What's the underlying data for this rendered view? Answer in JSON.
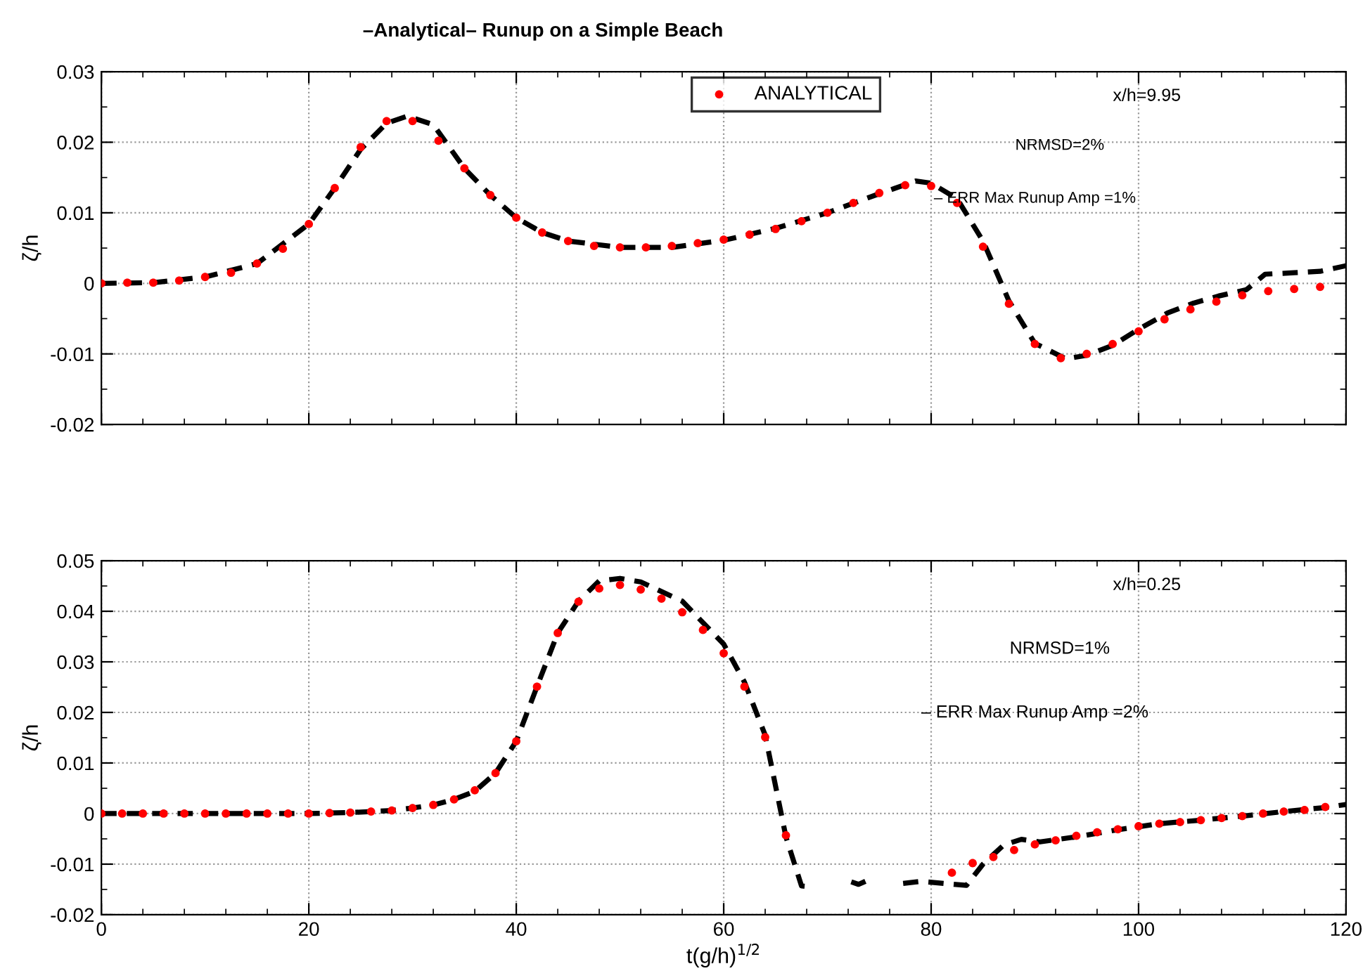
{
  "chart_data": [
    {
      "type": "line",
      "title": "–Analytical– Runup on a Simple Beach",
      "ylabel": "ζ/h",
      "xlim": [
        0,
        120
      ],
      "xticks": [
        0,
        20,
        40,
        60,
        80,
        100,
        120
      ],
      "ylim": [
        -0.02,
        0.03
      ],
      "yticks": [
        -0.02,
        -0.01,
        0,
        0.01,
        0.02,
        0.03
      ],
      "tick_labels": "y",
      "grid": true,
      "legend": "top",
      "annotations": [
        "x/h=9.95",
        "NRMSD=2%",
        "– ERR Max Runup Amp =1%"
      ],
      "series": [
        {
          "color": "#000000",
          "line_style": "dashed",
          "marker": "none",
          "x": [
            0,
            5,
            10,
            15,
            20,
            22.5,
            25,
            27.5,
            29.5,
            32,
            35,
            37.5,
            40,
            42.5,
            45,
            50,
            55,
            60,
            65,
            70,
            75,
            78.5,
            80,
            82.5,
            85,
            87.5,
            90,
            93,
            95,
            97.5,
            100,
            102.8,
            105.3,
            107.7,
            110.4,
            112.2,
            115,
            117.5,
            120
          ],
          "values": [
            0,
            0.0001,
            0.0009,
            0.0028,
            0.0084,
            0.0135,
            0.019,
            0.0227,
            0.0237,
            0.0225,
            0.0163,
            0.0125,
            0.0093,
            0.0072,
            0.006,
            0.0051,
            0.0051,
            0.0061,
            0.0078,
            0.01,
            0.0127,
            0.0145,
            0.0142,
            0.012,
            0.006,
            -0.0025,
            -0.0085,
            -0.0107,
            -0.0102,
            -0.0088,
            -0.0065,
            -0.0042,
            -0.0028,
            -0.0018,
            -0.0009,
            0.0013,
            0.0015,
            0.0017,
            0.0025
          ]
        },
        {
          "type": "scatter",
          "name": "ANALYTICAL",
          "color": "#ff0000",
          "marker": "circle",
          "x": [
            0,
            2.5,
            5,
            7.5,
            10,
            12.5,
            15,
            17.5,
            20,
            22.5,
            25,
            27.5,
            30,
            32.5,
            35,
            37.5,
            40,
            42.5,
            45,
            47.5,
            50,
            52.5,
            55,
            57.5,
            60,
            62.5,
            65,
            67.5,
            70,
            72.5,
            75,
            77.5,
            80,
            82.5,
            85,
            87.5,
            90,
            92.5,
            95,
            97.5,
            100,
            102.5,
            105,
            107.5,
            110,
            112.5,
            115,
            117.5
          ],
          "values": [
            0,
            0.0001,
            0.0001,
            0.0004,
            0.0009,
            0.0015,
            0.0028,
            0.0049,
            0.0084,
            0.0135,
            0.0193,
            0.023,
            0.023,
            0.0202,
            0.0163,
            0.0125,
            0.0093,
            0.0072,
            0.006,
            0.0053,
            0.0051,
            0.0051,
            0.0053,
            0.0057,
            0.0062,
            0.0069,
            0.0077,
            0.0088,
            0.01,
            0.0114,
            0.0128,
            0.0139,
            0.0138,
            0.0114,
            0.0052,
            -0.0029,
            -0.0086,
            -0.0106,
            -0.01,
            -0.0086,
            -0.0068,
            -0.0051,
            -0.0037,
            -0.0026,
            -0.0017,
            -0.0011,
            -0.0008,
            -0.0005
          ]
        }
      ]
    },
    {
      "type": "line",
      "ylabel": "ζ/h",
      "xlabel": "t(g/h)$^{1/2}$",
      "xlim": [
        0,
        120
      ],
      "xticks": [
        0,
        20,
        40,
        60,
        80,
        100,
        120
      ],
      "ylim": [
        -0.02,
        0.05
      ],
      "yticks": [
        -0.02,
        -0.01,
        0,
        0.01,
        0.02,
        0.03,
        0.04,
        0.05
      ],
      "grid": true,
      "annotations": [
        "x/h=0.25",
        "NRMSD=1%",
        "– ERR Max Runup Amp =2%"
      ],
      "series": [
        {
          "color": "#000000",
          "line_style": "dashed",
          "marker": "none",
          "x": [
            0,
            10,
            20,
            24,
            28,
            30,
            32,
            34,
            36,
            38,
            40,
            42,
            44,
            46,
            48,
            50,
            52,
            56,
            60,
            62,
            64,
            66,
            67.5,
            68.5,
            70,
            72.3,
            73,
            74.3,
            75.5,
            77.3,
            79,
            81.2,
            83.4,
            85,
            87,
            88.7,
            90.5,
            94,
            98,
            102,
            106,
            110,
            114,
            118,
            120
          ],
          "values": [
            0,
            0,
            0,
            0.0002,
            0.0006,
            0.0011,
            0.0017,
            0.0028,
            0.0044,
            0.008,
            0.0143,
            0.0251,
            0.0357,
            0.042,
            0.046,
            0.0465,
            0.0458,
            0.042,
            0.0335,
            0.026,
            0.0155,
            -0.0046,
            -0.0143,
            -0.0145,
            null,
            -0.0135,
            -0.014,
            -0.0128,
            null,
            -0.0138,
            -0.0134,
            -0.0138,
            -0.0142,
            -0.01,
            -0.0062,
            -0.0051,
            -0.0056,
            -0.0046,
            -0.0032,
            -0.002,
            -0.0013,
            -0.0005,
            0.0004,
            0.0012,
            0.0018
          ]
        },
        {
          "type": "scatter",
          "color": "#ff0000",
          "marker": "circle",
          "x": [
            0,
            2,
            4,
            6,
            8,
            10,
            12,
            14,
            16,
            18,
            20,
            22,
            24,
            26,
            28,
            30,
            32,
            34,
            36,
            38,
            40,
            42,
            44,
            46,
            48,
            50,
            52,
            54,
            56,
            58,
            60,
            62,
            64,
            66,
            82,
            84,
            86,
            88,
            90,
            92,
            94,
            96,
            98,
            100,
            102,
            104,
            106,
            108,
            110,
            112,
            114,
            116,
            118
          ],
          "values": [
            0,
            0,
            0,
            0,
            0,
            0,
            0,
            0,
            0,
            0,
            0,
            0.0001,
            0.0002,
            0.0004,
            0.0006,
            0.0011,
            0.0017,
            0.0028,
            0.0046,
            0.008,
            0.0143,
            0.0251,
            0.0357,
            0.0419,
            0.0445,
            0.0452,
            0.0443,
            0.0425,
            0.0398,
            0.0363,
            0.0317,
            0.0251,
            0.0151,
            -0.0043,
            -0.0117,
            -0.0098,
            -0.0086,
            -0.0072,
            -0.0061,
            -0.0053,
            -0.0044,
            -0.0037,
            -0.0031,
            -0.0025,
            -0.002,
            -0.0017,
            -0.0013,
            -0.0009,
            -0.0005,
            0,
            0.0004,
            0.0007,
            0.0013
          ]
        }
      ]
    }
  ]
}
